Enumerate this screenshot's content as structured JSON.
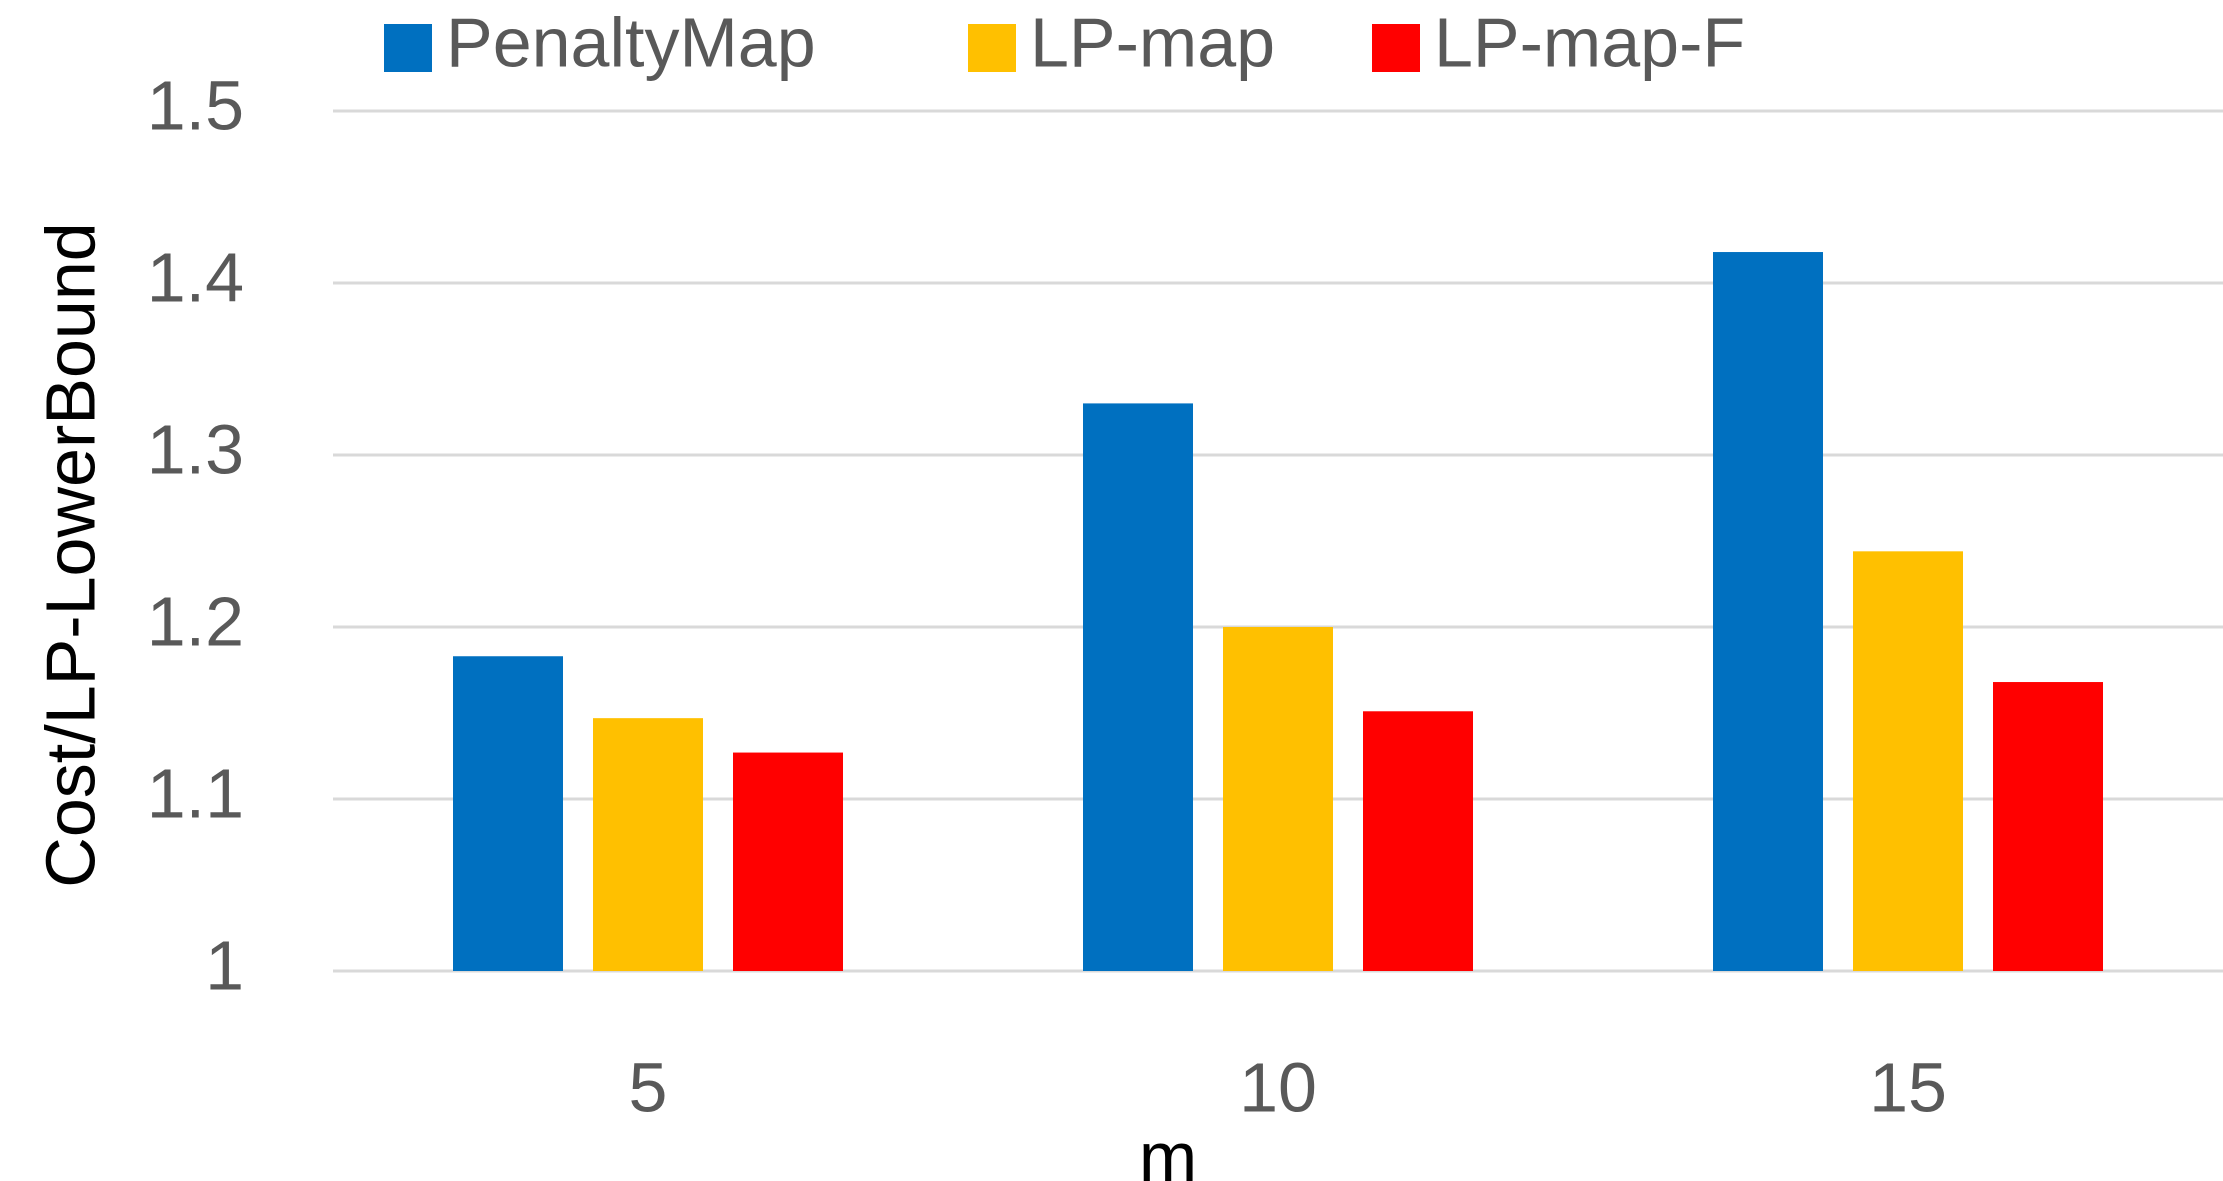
{
  "chart_data": {
    "type": "bar",
    "title": "",
    "xlabel": "m",
    "ylabel": "Cost/LP-LowerBound",
    "categories": [
      "5",
      "10",
      "15"
    ],
    "series": [
      {
        "name": "PenaltyMap",
        "color": "#0070C0",
        "values": [
          1.183,
          1.33,
          1.418
        ]
      },
      {
        "name": "LP-map",
        "color": "#FFC000",
        "values": [
          1.147,
          1.2,
          1.244
        ]
      },
      {
        "name": "LP-map-F",
        "color": "#FF0000",
        "values": [
          1.127,
          1.151,
          1.168
        ]
      }
    ],
    "ylim": [
      1,
      1.5
    ],
    "yticks": [
      "1",
      "1.1",
      "1.2",
      "1.3",
      "1.4",
      "1.5"
    ],
    "grid": true,
    "gridline_color": "#D9D9D9",
    "legend_position": "top"
  }
}
